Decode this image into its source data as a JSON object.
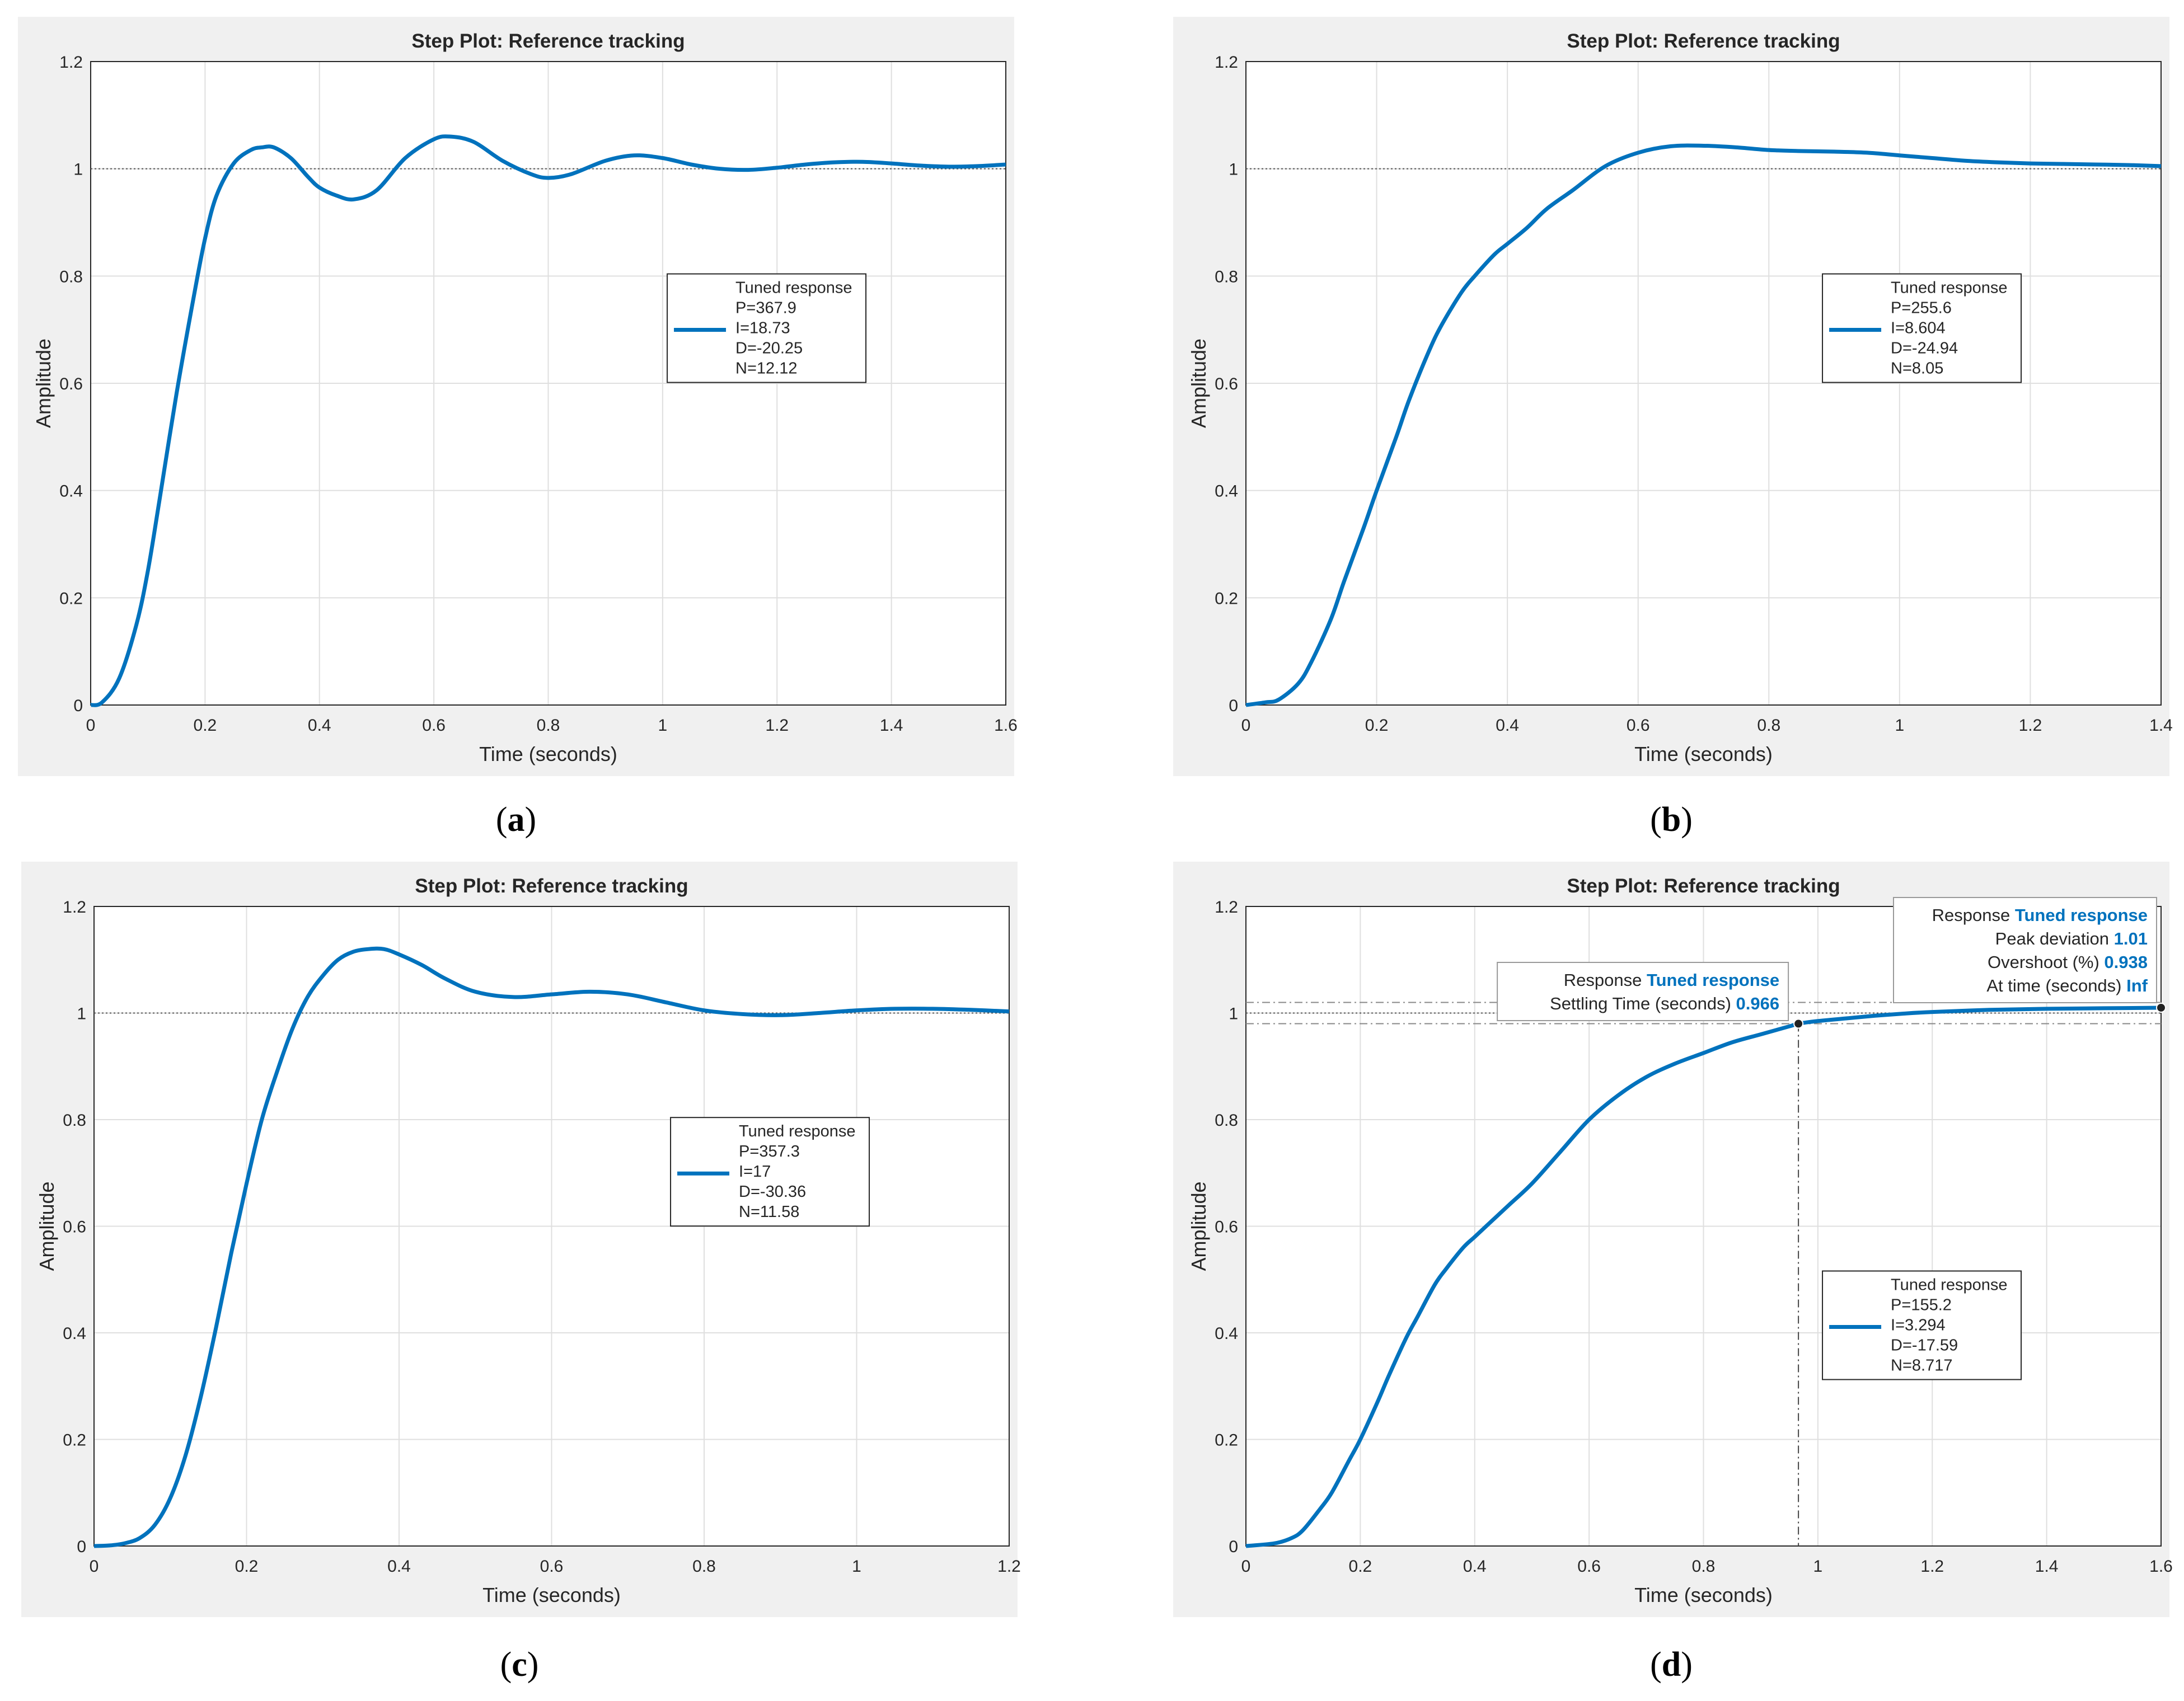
{
  "chart_data": [
    {
      "type": "line",
      "title": "Step Plot: Reference tracking",
      "xlabel": "Time (seconds)",
      "ylabel": "Amplitude",
      "xlim": [
        0,
        1.6
      ],
      "ylim": [
        0,
        1.2
      ],
      "xticks": [
        "0",
        "0.2",
        "0.4",
        "0.6",
        "0.8",
        "1",
        "1.2",
        "1.4",
        "1.6"
      ],
      "yticks": [
        "0",
        "0.2",
        "0.4",
        "0.6",
        "0.8",
        "1",
        "1.2"
      ],
      "grid": true,
      "reference": 1,
      "caption": "a",
      "legend": {
        "placement": "center-right",
        "lines": [
          "Tuned response",
          "P=367.9",
          "I=18.73",
          "D=-20.25",
          "N=12.12"
        ]
      },
      "series": [
        {
          "name": "Tuned response",
          "color": "#0072bd",
          "x": [
            0,
            0.02,
            0.05,
            0.08,
            0.1,
            0.12,
            0.15,
            0.18,
            0.2,
            0.22,
            0.25,
            0.28,
            0.3,
            0.32,
            0.35,
            0.38,
            0.4,
            0.43,
            0.46,
            0.5,
            0.55,
            0.6,
            0.63,
            0.67,
            0.72,
            0.77,
            0.8,
            0.84,
            0.9,
            0.95,
            1.0,
            1.05,
            1.1,
            1.15,
            1.2,
            1.25,
            1.3,
            1.35,
            1.4,
            1.45,
            1.5,
            1.55,
            1.6
          ],
          "y": [
            0,
            0.005,
            0.05,
            0.15,
            0.25,
            0.38,
            0.58,
            0.76,
            0.87,
            0.95,
            1.01,
            1.035,
            1.04,
            1.04,
            1.02,
            0.985,
            0.965,
            0.95,
            0.943,
            0.96,
            1.02,
            1.055,
            1.06,
            1.05,
            1.015,
            0.99,
            0.983,
            0.99,
            1.015,
            1.025,
            1.02,
            1.008,
            1.0,
            0.998,
            1.002,
            1.008,
            1.012,
            1.013,
            1.01,
            1.006,
            1.004,
            1.005,
            1.008
          ]
        }
      ]
    },
    {
      "type": "line",
      "title": "Step Plot: Reference tracking",
      "xlabel": "Time (seconds)",
      "ylabel": "Amplitude",
      "xlim": [
        0,
        1.4
      ],
      "ylim": [
        0,
        1.2
      ],
      "xticks": [
        "0",
        "0.2",
        "0.4",
        "0.6",
        "0.8",
        "1",
        "1.2",
        "1.4"
      ],
      "yticks": [
        "0",
        "0.2",
        "0.4",
        "0.6",
        "0.8",
        "1",
        "1.2"
      ],
      "grid": true,
      "reference": 1,
      "caption": "b",
      "legend": {
        "placement": "center-right",
        "lines": [
          "Tuned response",
          "P=255.6",
          "I=8.604",
          "D=-24.94",
          "N=8.05"
        ]
      },
      "series": [
        {
          "name": "Tuned response",
          "color": "#0072bd",
          "x": [
            0,
            0.03,
            0.05,
            0.08,
            0.1,
            0.13,
            0.15,
            0.18,
            0.2,
            0.23,
            0.25,
            0.28,
            0.3,
            0.33,
            0.35,
            0.38,
            0.4,
            0.43,
            0.46,
            0.5,
            0.55,
            0.6,
            0.65,
            0.7,
            0.75,
            0.8,
            0.85,
            0.9,
            0.95,
            1.0,
            1.05,
            1.1,
            1.15,
            1.2,
            1.25,
            1.3,
            1.35,
            1.4
          ],
          "y": [
            0,
            0.005,
            0.01,
            0.04,
            0.08,
            0.16,
            0.23,
            0.33,
            0.4,
            0.5,
            0.57,
            0.66,
            0.71,
            0.77,
            0.8,
            0.84,
            0.86,
            0.89,
            0.925,
            0.96,
            1.005,
            1.03,
            1.042,
            1.043,
            1.04,
            1.035,
            1.033,
            1.032,
            1.03,
            1.025,
            1.02,
            1.015,
            1.012,
            1.01,
            1.009,
            1.008,
            1.007,
            1.005
          ]
        }
      ]
    },
    {
      "type": "line",
      "title": "Step Plot: Reference tracking",
      "xlabel": "Time (seconds)",
      "ylabel": "Amplitude",
      "xlim": [
        0,
        1.2
      ],
      "ylim": [
        0,
        1.2
      ],
      "xticks": [
        "0",
        "0.2",
        "0.4",
        "0.6",
        "0.8",
        "1",
        "1.2"
      ],
      "yticks": [
        "0",
        "0.2",
        "0.4",
        "0.6",
        "0.8",
        "1",
        "1.2"
      ],
      "grid": true,
      "reference": 1,
      "caption": "c",
      "legend": {
        "placement": "center-right",
        "lines": [
          "Tuned response",
          "P=357.3",
          "I=17",
          "D=-30.36",
          "N=11.58"
        ]
      },
      "series": [
        {
          "name": "Tuned response",
          "color": "#0072bd",
          "x": [
            0,
            0.02,
            0.04,
            0.06,
            0.08,
            0.1,
            0.12,
            0.14,
            0.16,
            0.18,
            0.2,
            0.22,
            0.24,
            0.26,
            0.28,
            0.3,
            0.32,
            0.34,
            0.36,
            0.38,
            0.4,
            0.43,
            0.46,
            0.5,
            0.55,
            0.6,
            0.65,
            0.7,
            0.75,
            0.8,
            0.85,
            0.9,
            0.95,
            1.0,
            1.05,
            1.1,
            1.15,
            1.2
          ],
          "y": [
            0,
            0.001,
            0.005,
            0.015,
            0.04,
            0.09,
            0.17,
            0.28,
            0.41,
            0.55,
            0.68,
            0.8,
            0.89,
            0.97,
            1.03,
            1.07,
            1.1,
            1.115,
            1.12,
            1.12,
            1.11,
            1.09,
            1.065,
            1.04,
            1.03,
            1.035,
            1.04,
            1.035,
            1.02,
            1.005,
            0.998,
            0.996,
            1.0,
            1.005,
            1.008,
            1.008,
            1.006,
            1.003
          ]
        }
      ]
    },
    {
      "type": "line",
      "title": "Step Plot: Reference tracking",
      "xlabel": "Time (seconds)",
      "ylabel": "Amplitude",
      "xlim": [
        0,
        1.6
      ],
      "ylim": [
        0,
        1.2
      ],
      "xticks": [
        "0",
        "0.2",
        "0.4",
        "0.6",
        "0.8",
        "1",
        "1.2",
        "1.4",
        "1.6"
      ],
      "yticks": [
        "0",
        "0.2",
        "0.4",
        "0.6",
        "0.8",
        "1",
        "1.2"
      ],
      "grid": true,
      "reference": 1,
      "settling_band": [
        0.98,
        1.02
      ],
      "caption": "d",
      "legend": {
        "placement": "lower-right",
        "lines": [
          "Tuned response",
          "P=155.2",
          "I=3.294",
          "D=-17.59",
          "N=8.717"
        ]
      },
      "series": [
        {
          "name": "Tuned response",
          "color": "#0072bd",
          "x": [
            0,
            0.05,
            0.08,
            0.1,
            0.13,
            0.15,
            0.18,
            0.2,
            0.23,
            0.25,
            0.28,
            0.3,
            0.33,
            0.35,
            0.38,
            0.4,
            0.43,
            0.46,
            0.5,
            0.55,
            0.6,
            0.65,
            0.7,
            0.75,
            0.8,
            0.85,
            0.9,
            0.95,
            0.966,
            1.0,
            1.05,
            1.1,
            1.15,
            1.2,
            1.3,
            1.4,
            1.5,
            1.6
          ],
          "y": [
            0,
            0.005,
            0.015,
            0.03,
            0.07,
            0.1,
            0.16,
            0.2,
            0.27,
            0.32,
            0.39,
            0.43,
            0.49,
            0.52,
            0.56,
            0.58,
            0.61,
            0.64,
            0.68,
            0.74,
            0.8,
            0.845,
            0.88,
            0.905,
            0.925,
            0.945,
            0.96,
            0.975,
            0.98,
            0.985,
            0.99,
            0.995,
            0.999,
            1.002,
            1.006,
            1.008,
            1.009,
            1.01
          ]
        }
      ],
      "markers": [
        {
          "x": 0.966,
          "y": 0.98
        },
        {
          "x": 1.6,
          "y": 1.01
        }
      ],
      "datatips": [
        {
          "placement": "top-center",
          "rows": [
            {
              "label": "Response",
              "value": "Tuned response"
            },
            {
              "label": "Settling Time (seconds)",
              "value": "0.966"
            }
          ]
        },
        {
          "placement": "top-right",
          "rows": [
            {
              "label": "Response",
              "value": "Tuned response"
            },
            {
              "label": "Peak deviation",
              "value": "1.01"
            },
            {
              "label": "Overshoot (%)",
              "value": "0.938"
            },
            {
              "label": "At time (seconds)",
              "value": "Inf"
            }
          ]
        }
      ]
    }
  ]
}
